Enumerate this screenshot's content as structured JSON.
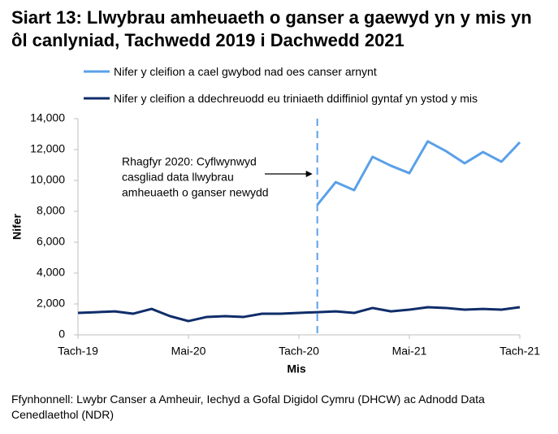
{
  "chart_data": {
    "type": "line",
    "title": "Siart 13: Llwybrau amheuaeth o ganser a gaewyd yn y mis yn ôl canlyniad, Tachwedd 2019 i Dachwedd 2021",
    "categories": [
      "Tach-19",
      null,
      null,
      null,
      null,
      null,
      "Mai-20",
      null,
      null,
      null,
      null,
      null,
      "Tach-20",
      null,
      null,
      null,
      null,
      null,
      "Mai-21",
      null,
      null,
      null,
      null,
      null,
      "Tach-21"
    ],
    "series": [
      {
        "name": "Nifer y cleifion a cael gwybod nad oes canser arnynt",
        "color": "#5aa0e8",
        "values": [
          null,
          null,
          null,
          null,
          null,
          null,
          null,
          null,
          null,
          null,
          null,
          null,
          null,
          8420,
          9890,
          9370,
          11530,
          10950,
          10470,
          12530,
          11890,
          11110,
          11840,
          11210,
          12470
        ]
      },
      {
        "name": "Nifer y cleifion a ddechreuodd eu triniaeth ddiffiniol gyntaf yn ystod y mis",
        "color": "#0f2d69",
        "values": [
          1420,
          1470,
          1520,
          1370,
          1680,
          1210,
          890,
          1160,
          1210,
          1160,
          1370,
          1370,
          1420,
          1470,
          1520,
          1420,
          1740,
          1520,
          1630,
          1790,
          1740,
          1630,
          1680,
          1630,
          1790
        ]
      }
    ],
    "ylim": [
      0,
      14000
    ],
    "yticks": [
      0,
      {
        "value": 2000,
        "label": "2,000"
      },
      {
        "value": 4000,
        "label": "4,000"
      },
      {
        "value": 6000,
        "label": "6,000"
      },
      {
        "value": 8000,
        "label": "8,000"
      },
      {
        "value": 10000,
        "label": "10,000"
      },
      {
        "value": 12000,
        "label": "12,000"
      },
      {
        "value": 14000,
        "label": "14,000"
      }
    ],
    "ylabel": "Nifer",
    "xlabel": "Mis",
    "annotation": [
      "Rhagfyr 2020: Cyflwynwyd",
      "casgliad data llwybrau",
      "amheuaeth o ganser newydd"
    ],
    "source": "Ffynhonnell: Lwybr Canser a Amheuir, Iechyd a Gofal Digidol Cymru (DHCW) ac Adnodd Data Cenedlaethol (NDR)"
  }
}
